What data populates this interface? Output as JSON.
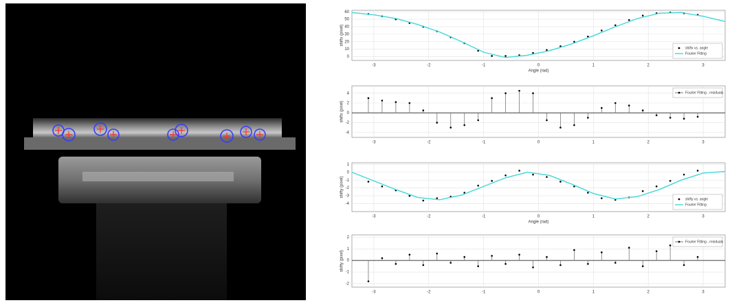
{
  "chart_data": [
    {
      "type": "scatter",
      "xlabel": "Angle (rad)",
      "ylabel": "shiftx (pixel)",
      "xlim": [
        -3.4,
        3.4
      ],
      "ylim": [
        -5,
        62
      ],
      "xticks": [
        -3,
        -2,
        -1,
        0,
        1,
        2,
        3
      ],
      "yticks": [
        0,
        10,
        20,
        30,
        40,
        50,
        60
      ],
      "grid": true,
      "legend": "lower right",
      "series": [
        {
          "name": "shiftx vs. angle",
          "color": "#000000",
          "style": "markers",
          "x": [
            -3.1,
            -2.85,
            -2.6,
            -2.35,
            -2.1,
            -1.85,
            -1.6,
            -1.35,
            -1.1,
            -0.85,
            -0.6,
            -0.35,
            -0.1,
            0.15,
            0.4,
            0.65,
            0.9,
            1.15,
            1.4,
            1.65,
            1.9,
            2.15,
            2.4,
            2.65,
            2.9
          ],
          "values": [
            57,
            54,
            50,
            45,
            40,
            34,
            26,
            18,
            8,
            1,
            1,
            2,
            5,
            9,
            14,
            20,
            27,
            35,
            42,
            49,
            55,
            58,
            59,
            58,
            56
          ]
        },
        {
          "name": "Fourier Fitting",
          "color": "#40d8d8",
          "style": "line",
          "x": [
            -3.4,
            -3.0,
            -2.6,
            -2.2,
            -1.8,
            -1.4,
            -1.0,
            -0.6,
            -0.2,
            0.2,
            0.6,
            1.0,
            1.4,
            1.8,
            2.2,
            2.6,
            3.0,
            3.4
          ],
          "values": [
            59,
            56,
            51,
            43,
            33,
            20,
            6,
            -1,
            2,
            8,
            17,
            28,
            40,
            51,
            58,
            59,
            54,
            47
          ]
        }
      ]
    },
    {
      "type": "stem",
      "ylabel": "shiftx (pixel)",
      "xlim": [
        -3.4,
        3.4
      ],
      "ylim": [
        -5,
        5.5
      ],
      "xticks": [
        -3,
        -2,
        -1,
        0,
        1,
        2,
        3
      ],
      "yticks": [
        -4,
        -2,
        0,
        2,
        4
      ],
      "grid": true,
      "legend": "upper right",
      "series": [
        {
          "name": "Fourier Fitting - residuals",
          "color": "#000000",
          "style": "stem",
          "x": [
            -3.1,
            -2.85,
            -2.6,
            -2.35,
            -2.1,
            -1.85,
            -1.6,
            -1.35,
            -1.1,
            -0.85,
            -0.6,
            -0.35,
            -0.1,
            0.15,
            0.4,
            0.65,
            0.9,
            1.15,
            1.4,
            1.65,
            1.9,
            2.15,
            2.4,
            2.65,
            2.9
          ],
          "values": [
            3,
            2.5,
            2.2,
            2,
            0.5,
            -2,
            -3,
            -2.5,
            -1.5,
            3,
            4,
            4.5,
            4,
            -1.5,
            -3,
            -2.5,
            -1,
            1,
            2,
            1.5,
            0.5,
            -0.5,
            -1,
            -1.2,
            -0.8
          ]
        }
      ]
    },
    {
      "type": "scatter",
      "xlabel": "Angle (rad)",
      "ylabel": "shifty (pixel)",
      "xlim": [
        -3.4,
        3.4
      ],
      "ylim": [
        -5,
        1.2
      ],
      "xticks": [
        -3,
        -2,
        -1,
        0,
        1,
        2,
        3
      ],
      "yticks": [
        -4,
        -3,
        -2,
        -1,
        0,
        1
      ],
      "grid": true,
      "legend": "lower right",
      "series": [
        {
          "name": "shifty vs. angle",
          "color": "#000000",
          "style": "markers",
          "x": [
            -3.1,
            -2.85,
            -2.6,
            -2.35,
            -2.1,
            -1.85,
            -1.6,
            -1.35,
            -1.1,
            -0.85,
            -0.6,
            -0.35,
            -0.1,
            0.15,
            0.4,
            0.65,
            0.9,
            1.15,
            1.4,
            1.65,
            1.9,
            2.15,
            2.4,
            2.65,
            2.9
          ],
          "values": [
            -1.2,
            -1.8,
            -2.3,
            -3,
            -3.6,
            -3.3,
            -3.1,
            -2.6,
            -1.7,
            -1.1,
            -0.4,
            0.2,
            -0.3,
            -0.6,
            -1.2,
            -1.8,
            -2.6,
            -3.3,
            -3.5,
            -3.2,
            -2.4,
            -1.8,
            -1.1,
            -0.3,
            0.2
          ]
        },
        {
          "name": "Fourier Fitting",
          "color": "#40d8d8",
          "style": "line",
          "x": [
            -3.4,
            -3.0,
            -2.6,
            -2.2,
            -1.8,
            -1.4,
            -1.0,
            -0.6,
            -0.2,
            0.2,
            0.6,
            1.0,
            1.4,
            1.8,
            2.2,
            2.6,
            3.0,
            3.4
          ],
          "values": [
            0,
            -1.1,
            -2.2,
            -3.2,
            -3.5,
            -2.9,
            -1.8,
            -0.7,
            0,
            -0.4,
            -1.5,
            -2.7,
            -3.4,
            -3.1,
            -2.2,
            -1,
            -0.1,
            0.1
          ]
        }
      ]
    },
    {
      "type": "stem",
      "ylabel": "shifty (pixel)",
      "xlim": [
        -3.4,
        3.4
      ],
      "ylim": [
        -2.3,
        2.2
      ],
      "xticks": [
        -3,
        -2,
        -1,
        0,
        1,
        2,
        3
      ],
      "yticks": [
        -2,
        -1,
        0,
        1,
        2
      ],
      "grid": true,
      "legend": "upper right",
      "series": [
        {
          "name": "Fourier Fitting - residuals",
          "color": "#000000",
          "style": "stem",
          "x": [
            -3.1,
            -2.85,
            -2.6,
            -2.35,
            -2.1,
            -1.85,
            -1.6,
            -1.35,
            -1.1,
            -0.85,
            -0.6,
            -0.35,
            -0.1,
            0.15,
            0.4,
            0.65,
            0.9,
            1.15,
            1.4,
            1.65,
            1.9,
            2.15,
            2.4,
            2.65,
            2.9
          ],
          "values": [
            -1.8,
            0.2,
            -0.3,
            0.5,
            -0.4,
            0.6,
            -0.2,
            0.3,
            -0.5,
            0.4,
            -0.3,
            0.5,
            -0.6,
            0.3,
            -0.4,
            0.9,
            -0.3,
            0.7,
            -0.2,
            1.1,
            -0.5,
            0.8,
            1.3,
            -0.4,
            0.3
          ]
        }
      ]
    }
  ]
}
